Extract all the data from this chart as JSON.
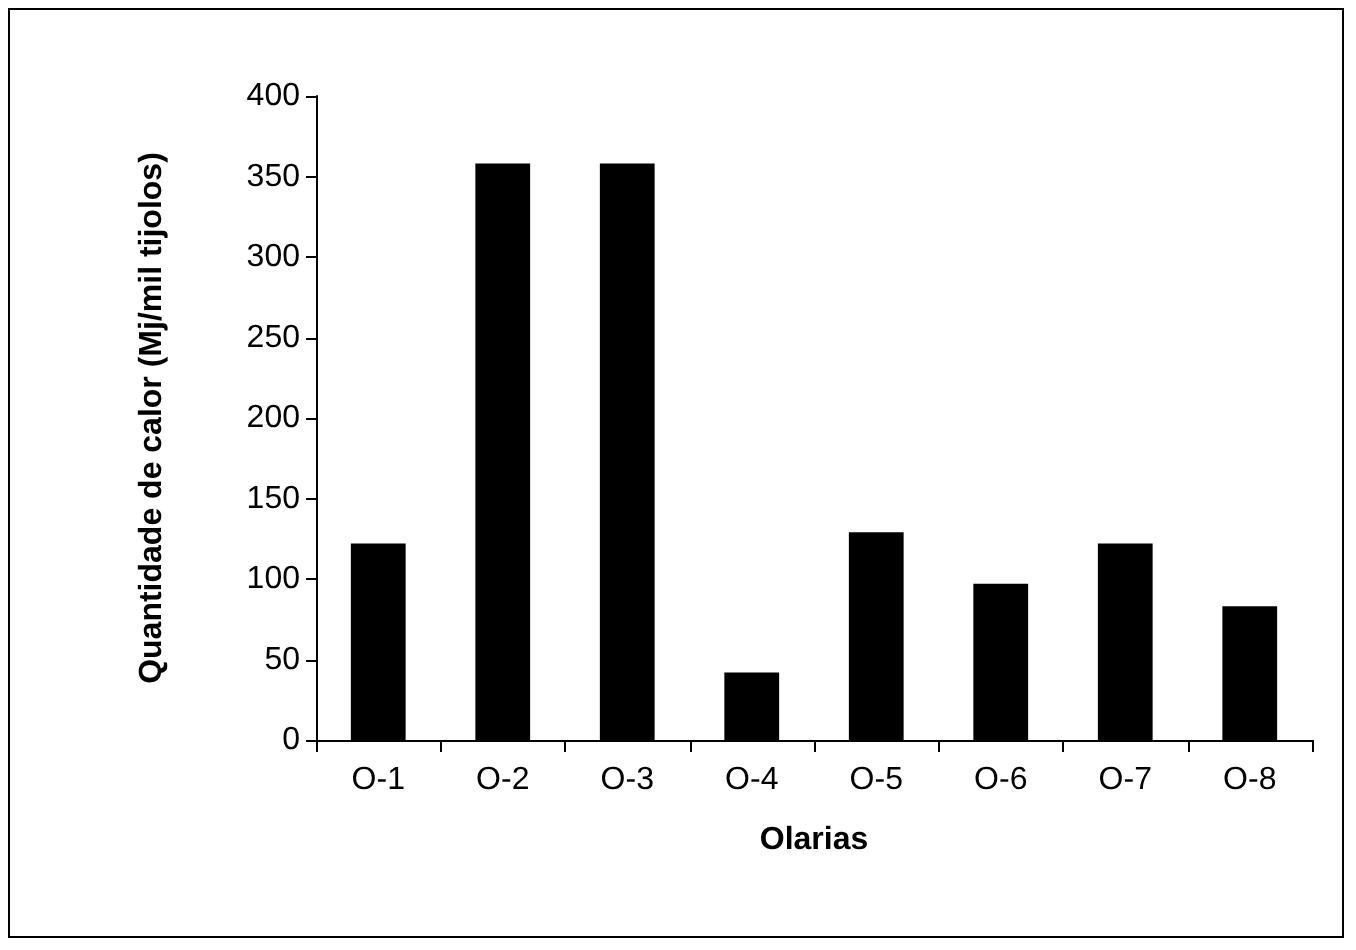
{
  "chart_data": {
    "type": "bar",
    "xlabel": "Olarias",
    "ylabel": "Quantidade de calor (Mj/mil tijolos)",
    "categories": [
      "O-1",
      "O-2",
      "O-3",
      "O-4",
      "O-5",
      "O-6",
      "O-7",
      "O-8"
    ],
    "values": [
      122,
      358,
      358,
      42,
      129,
      97,
      122,
      83
    ],
    "color": "#000000",
    "ylim": [
      0,
      400
    ],
    "yticks": [
      0,
      50,
      100,
      150,
      200,
      250,
      300,
      350,
      400
    ],
    "grid": false
  }
}
